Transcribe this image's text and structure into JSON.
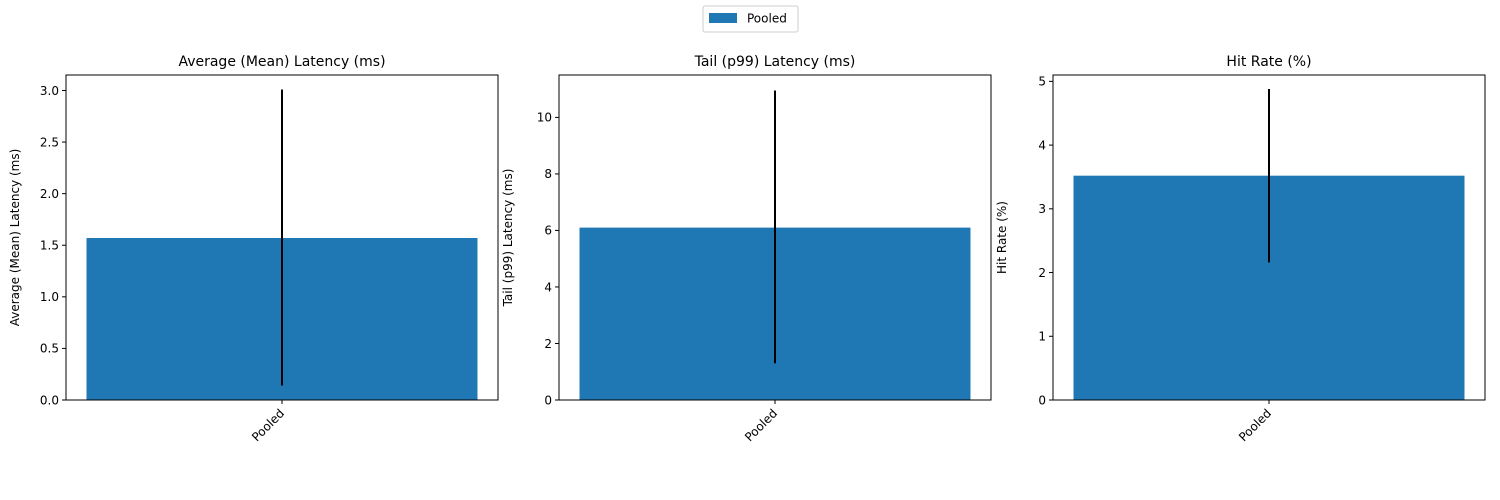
{
  "legend": {
    "label": "Pooled",
    "position": "upper-center"
  },
  "chart_data": [
    {
      "type": "bar",
      "title": "Average (Mean) Latency (ms)",
      "xlabel": "",
      "ylabel": "Average (Mean) Latency (ms)",
      "categories": [
        "Pooled"
      ],
      "series": [
        {
          "name": "Pooled",
          "values": [
            1.57
          ],
          "error_low": [
            0.14
          ],
          "error_high": [
            3.01
          ],
          "color": "#1f77b4"
        }
      ],
      "ylim": [
        0,
        3.15
      ],
      "yticks": [
        0.0,
        0.5,
        1.0,
        1.5,
        2.0,
        2.5,
        3.0
      ],
      "ytick_labels": [
        "0.0",
        "0.5",
        "1.0",
        "1.5",
        "2.0",
        "2.5",
        "3.0"
      ],
      "grid": false
    },
    {
      "type": "bar",
      "title": "Tail (p99) Latency (ms)",
      "xlabel": "",
      "ylabel": "Tail (p99) Latency (ms)",
      "categories": [
        "Pooled"
      ],
      "series": [
        {
          "name": "Pooled",
          "values": [
            6.1
          ],
          "error_low": [
            1.3
          ],
          "error_high": [
            10.95
          ],
          "color": "#1f77b4"
        }
      ],
      "ylim": [
        0,
        11.5
      ],
      "yticks": [
        0,
        2,
        4,
        6,
        8,
        10
      ],
      "ytick_labels": [
        "0",
        "2",
        "4",
        "6",
        "8",
        "10"
      ],
      "grid": false
    },
    {
      "type": "bar",
      "title": "Hit Rate (%)",
      "xlabel": "",
      "ylabel": "Hit Rate (%)",
      "categories": [
        "Pooled"
      ],
      "series": [
        {
          "name": "Pooled",
          "values": [
            3.52
          ],
          "error_low": [
            2.16
          ],
          "error_high": [
            4.88
          ],
          "color": "#1f77b4"
        }
      ],
      "ylim": [
        0,
        5.1
      ],
      "yticks": [
        0,
        1,
        2,
        3,
        4,
        5
      ],
      "ytick_labels": [
        "0",
        "1",
        "2",
        "3",
        "4",
        "5"
      ],
      "grid": false
    }
  ]
}
